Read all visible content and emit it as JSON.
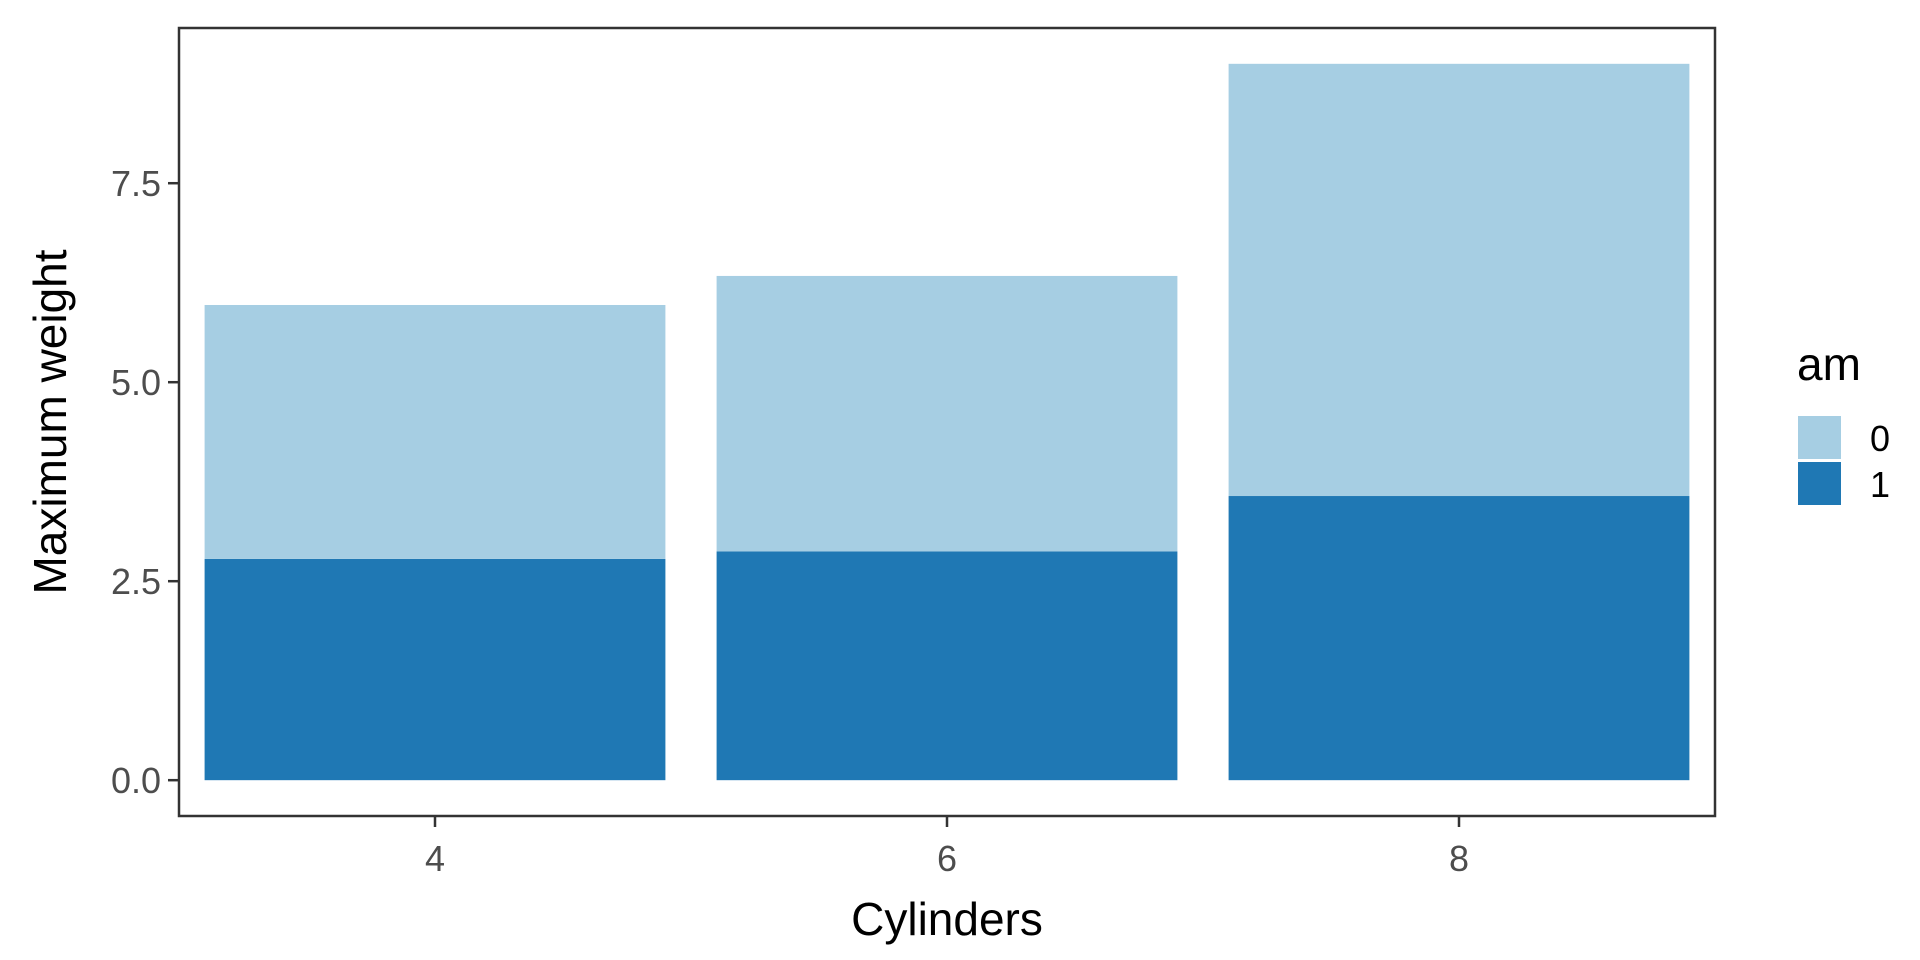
{
  "chart_data": {
    "type": "bar",
    "stacked": true,
    "title": "",
    "xlabel": "Cylinders",
    "ylabel": "Maximum weight",
    "categories": [
      "4",
      "6",
      "8"
    ],
    "series": [
      {
        "name": "1",
        "values": [
          2.78,
          2.875,
          3.57
        ],
        "color": "#1f78b4"
      },
      {
        "name": "0",
        "values": [
          3.19,
          3.46,
          5.43
        ],
        "color": "#a6cee3"
      }
    ],
    "ylim": [
      -0.45,
      9.45
    ],
    "yticks": [
      0.0,
      2.5,
      5.0,
      7.5
    ],
    "ytick_labels": [
      "0.0",
      "2.5",
      "5.0",
      "7.5"
    ],
    "grid": false,
    "legend": {
      "title": "am",
      "placement": "right",
      "items": [
        {
          "label": "0",
          "color": "#a6cee3"
        },
        {
          "label": "1",
          "color": "#1f78b4"
        }
      ]
    }
  }
}
